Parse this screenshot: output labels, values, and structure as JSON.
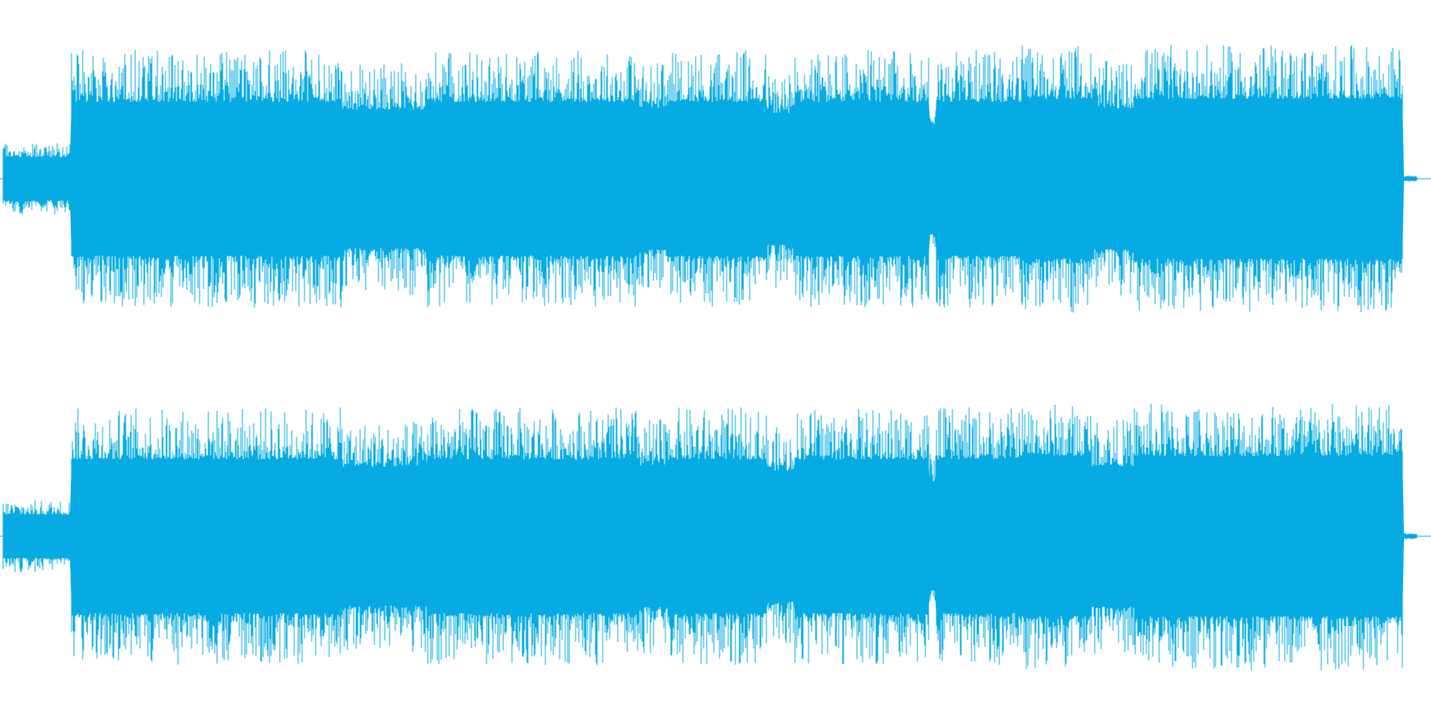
{
  "waveform": {
    "color": "#05ABE2",
    "background": "#FFFFFF",
    "channels": [
      {
        "channel": "left"
      },
      {
        "channel": "right"
      }
    ],
    "intro_end_fraction": 0.048,
    "outro_start_fraction": 0.99,
    "intro_level": 0.22,
    "body_level": 0.78
  }
}
